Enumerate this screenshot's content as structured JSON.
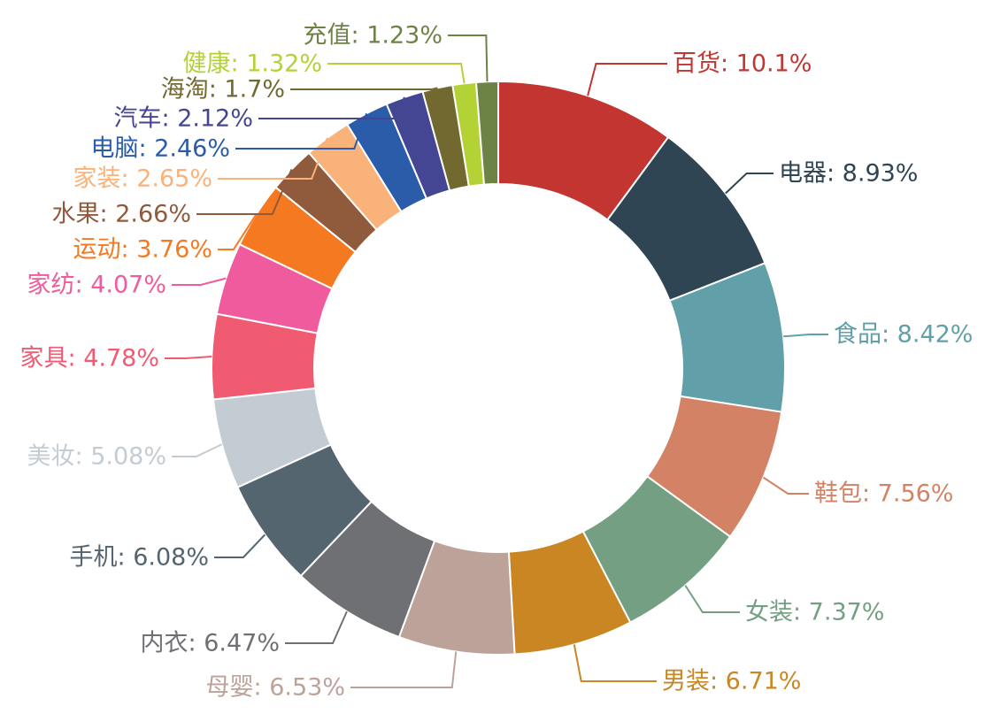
{
  "chart_data": {
    "type": "pie",
    "variant": "donut",
    "title": "",
    "legend": "none",
    "slices": [
      {
        "name": "百货",
        "value": 10.1,
        "label": "百货: 10.1%",
        "color": "#c23531"
      },
      {
        "name": "电器",
        "value": 8.93,
        "label": "电器: 8.93%",
        "color": "#2f4554"
      },
      {
        "name": "食品",
        "value": 8.42,
        "label": "食品: 8.42%",
        "color": "#61a0a8"
      },
      {
        "name": "鞋包",
        "value": 7.56,
        "label": "鞋包: 7.56%",
        "color": "#d48265"
      },
      {
        "name": "女装",
        "value": 7.37,
        "label": "女装: 7.37%",
        "color": "#749f83"
      },
      {
        "name": "男装",
        "value": 6.71,
        "label": "男装: 6.71%",
        "color": "#ca8622"
      },
      {
        "name": "母婴",
        "value": 6.53,
        "label": "母婴: 6.53%",
        "color": "#bda29a"
      },
      {
        "name": "内衣",
        "value": 6.47,
        "label": "内衣: 6.47%",
        "color": "#6e7074"
      },
      {
        "name": "手机",
        "value": 6.08,
        "label": "手机: 6.08%",
        "color": "#546570"
      },
      {
        "name": "美妆",
        "value": 5.08,
        "label": "美妆: 5.08%",
        "color": "#c4ccd3"
      },
      {
        "name": "家具",
        "value": 4.78,
        "label": "家具: 4.78%",
        "color": "#f05b72"
      },
      {
        "name": "家纺",
        "value": 4.07,
        "label": "家纺: 4.07%",
        "color": "#ef5b9c"
      },
      {
        "name": "运动",
        "value": 3.76,
        "label": "运动: 3.76%",
        "color": "#f47920"
      },
      {
        "name": "水果",
        "value": 2.66,
        "label": "水果: 2.66%",
        "color": "#905a3d"
      },
      {
        "name": "家装",
        "value": 2.65,
        "label": "家装: 2.65%",
        "color": "#fab27b"
      },
      {
        "name": "电脑",
        "value": 2.46,
        "label": "电脑: 2.46%",
        "color": "#2a5caa"
      },
      {
        "name": "汽车",
        "value": 2.12,
        "label": "汽车: 2.12%",
        "color": "#444693"
      },
      {
        "name": "海淘",
        "value": 1.7,
        "label": "海淘: 1.7%",
        "color": "#726930"
      },
      {
        "name": "健康",
        "value": 1.32,
        "label": "健康: 1.32%",
        "color": "#b2d235"
      },
      {
        "name": "充值",
        "value": 1.23,
        "label": "充值: 1.23%",
        "color": "#6d8346"
      }
    ]
  }
}
